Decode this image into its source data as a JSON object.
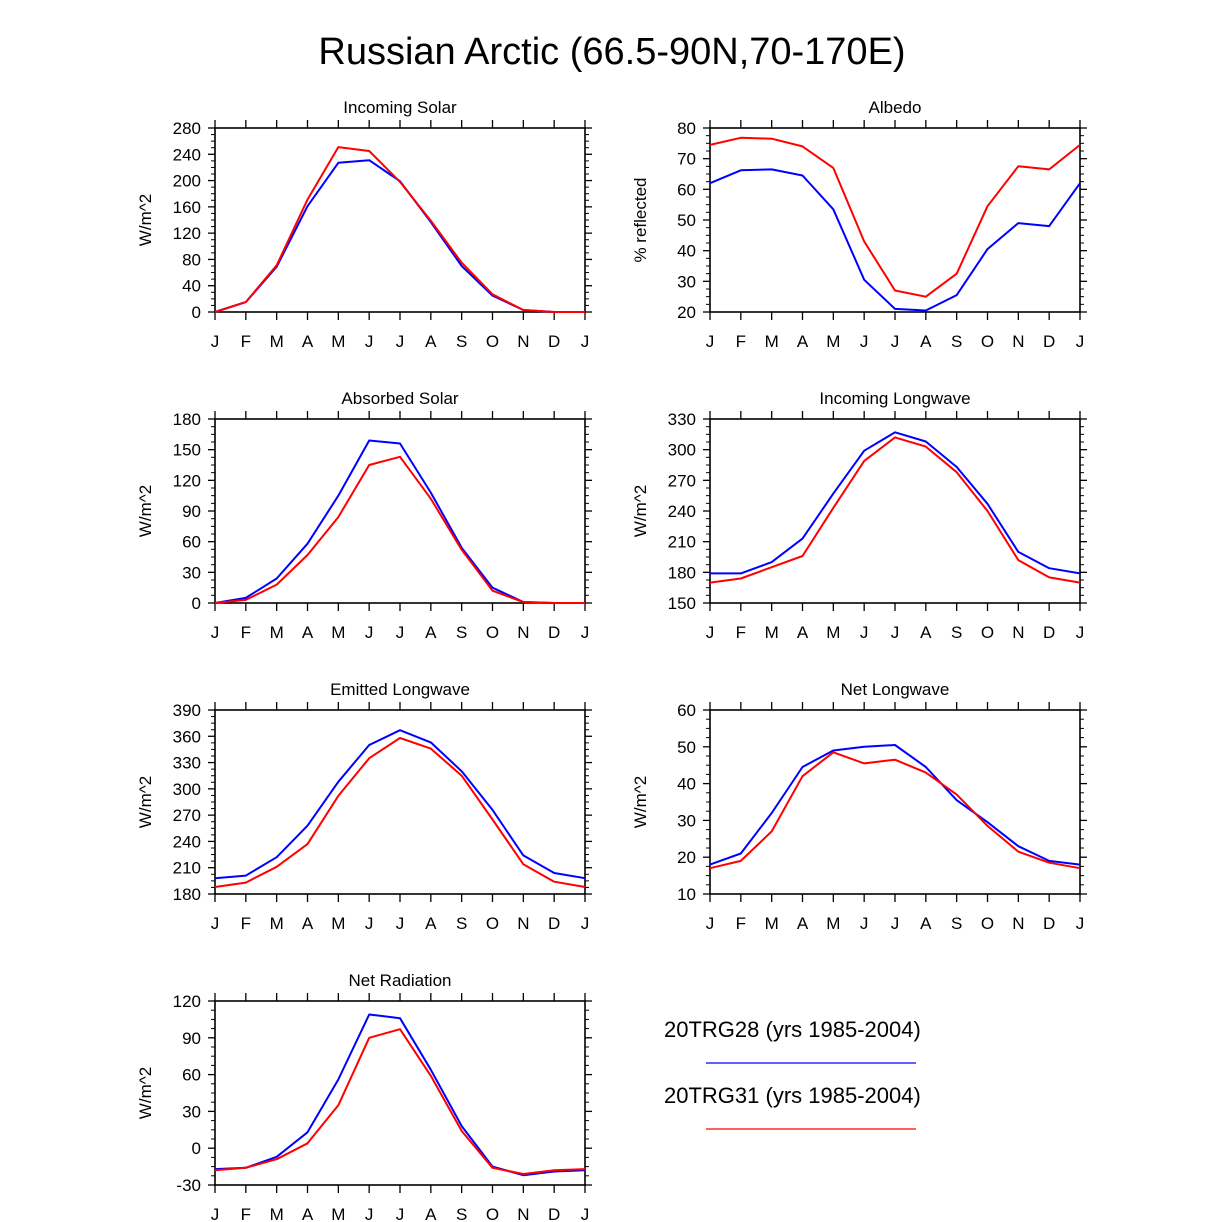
{
  "title": "Russian Arctic (66.5-90N,70-170E)",
  "colors": {
    "series1": "#0000ff",
    "series2": "#ff0000",
    "axis": "#000000"
  },
  "legend": {
    "items": [
      {
        "label": "20TRG28 (yrs 1985-2004)",
        "color": "#0000ff"
      },
      {
        "label": "20TRG31 (yrs 1985-2004)",
        "color": "#ff0000"
      }
    ]
  },
  "chart_data": [
    {
      "type": "line",
      "title": "Incoming Solar",
      "ylabel": "W/m^2",
      "xlabel": "",
      "categories": [
        "J",
        "F",
        "M",
        "A",
        "M",
        "J",
        "J",
        "A",
        "S",
        "O",
        "N",
        "D",
        "J"
      ],
      "ylim": [
        0,
        280
      ],
      "yticks": [
        0,
        40,
        80,
        120,
        160,
        200,
        240,
        280
      ],
      "series": [
        {
          "name": "20TRG28 (yrs 1985-2004)",
          "values": [
            0,
            15,
            69,
            161,
            227,
            231,
            199,
            137,
            70,
            25,
            3,
            0,
            0
          ]
        },
        {
          "name": "20TRG31 (yrs 1985-2004)",
          "values": [
            0,
            15,
            71,
            171,
            251,
            245,
            198,
            139,
            75,
            27,
            3,
            0,
            0
          ]
        }
      ]
    },
    {
      "type": "line",
      "title": "Albedo",
      "ylabel": "% reflected",
      "xlabel": "",
      "categories": [
        "J",
        "F",
        "M",
        "A",
        "M",
        "J",
        "J",
        "A",
        "S",
        "O",
        "N",
        "D",
        "J"
      ],
      "ylim": [
        20,
        80
      ],
      "yticks": [
        20,
        30,
        40,
        50,
        60,
        70,
        80
      ],
      "series": [
        {
          "name": "20TRG28 (yrs 1985-2004)",
          "values": [
            62,
            66.2,
            66.5,
            64.5,
            53.5,
            30.5,
            21,
            20.5,
            25.5,
            40.5,
            49,
            48,
            62
          ]
        },
        {
          "name": "20TRG31 (yrs 1985-2004)",
          "values": [
            74.5,
            76.8,
            76.5,
            74,
            67,
            43,
            27,
            25,
            32.5,
            54.5,
            67.5,
            66.5,
            74.5
          ]
        }
      ]
    },
    {
      "type": "line",
      "title": "Absorbed Solar",
      "ylabel": "W/m^2",
      "xlabel": "",
      "categories": [
        "J",
        "F",
        "M",
        "A",
        "M",
        "J",
        "J",
        "A",
        "S",
        "O",
        "N",
        "D",
        "J"
      ],
      "ylim": [
        0,
        180
      ],
      "yticks": [
        0,
        30,
        60,
        90,
        120,
        150,
        180
      ],
      "series": [
        {
          "name": "20TRG28 (yrs 1985-2004)",
          "values": [
            0,
            5,
            24,
            58,
            105,
            159,
            156,
            108,
            54,
            15,
            1,
            0,
            0
          ]
        },
        {
          "name": "20TRG31 (yrs 1985-2004)",
          "values": [
            0,
            3,
            18,
            47,
            84,
            135,
            143,
            102,
            52,
            12,
            1,
            0,
            0
          ]
        }
      ]
    },
    {
      "type": "line",
      "title": "Incoming Longwave",
      "ylabel": "W/m^2",
      "xlabel": "",
      "categories": [
        "J",
        "F",
        "M",
        "A",
        "M",
        "J",
        "J",
        "A",
        "S",
        "O",
        "N",
        "D",
        "J"
      ],
      "ylim": [
        150,
        330
      ],
      "yticks": [
        150,
        180,
        210,
        240,
        270,
        300,
        330
      ],
      "series": [
        {
          "name": "20TRG28 (yrs 1985-2004)",
          "values": [
            179,
            179,
            190,
            213,
            257,
            299,
            317,
            308,
            283,
            247,
            200,
            184,
            179
          ]
        },
        {
          "name": "20TRG31 (yrs 1985-2004)",
          "values": [
            170,
            174,
            185,
            196,
            243,
            289,
            312,
            303,
            278,
            240,
            192,
            175,
            170
          ]
        }
      ]
    },
    {
      "type": "line",
      "title": "Emitted Longwave",
      "ylabel": "W/m^2",
      "xlabel": "",
      "categories": [
        "J",
        "F",
        "M",
        "A",
        "M",
        "J",
        "J",
        "A",
        "S",
        "O",
        "N",
        "D",
        "J"
      ],
      "ylim": [
        180,
        390
      ],
      "yticks": [
        180,
        210,
        240,
        270,
        300,
        330,
        360,
        390
      ],
      "series": [
        {
          "name": "20TRG28 (yrs 1985-2004)",
          "values": [
            198,
            201,
            222,
            258,
            308,
            350,
            367,
            353,
            320,
            276,
            224,
            204,
            198
          ]
        },
        {
          "name": "20TRG31 (yrs 1985-2004)",
          "values": [
            188,
            193,
            211,
            237,
            292,
            335,
            358,
            346,
            315,
            265,
            214,
            194,
            188
          ]
        }
      ]
    },
    {
      "type": "line",
      "title": "Net Longwave",
      "ylabel": "W/m^2",
      "xlabel": "",
      "categories": [
        "J",
        "F",
        "M",
        "A",
        "M",
        "J",
        "J",
        "A",
        "S",
        "O",
        "N",
        "D",
        "J"
      ],
      "ylim": [
        10,
        60
      ],
      "yticks": [
        10,
        20,
        30,
        40,
        50,
        60
      ],
      "series": [
        {
          "name": "20TRG28 (yrs 1985-2004)",
          "values": [
            18,
            21,
            32,
            44.5,
            49,
            50,
            50.5,
            44.5,
            35.5,
            29.5,
            23,
            19,
            18
          ]
        },
        {
          "name": "20TRG31 (yrs 1985-2004)",
          "values": [
            17,
            19,
            27,
            42,
            48.5,
            45.5,
            46.5,
            43,
            37,
            28.5,
            21.5,
            18.5,
            17
          ]
        }
      ]
    },
    {
      "type": "line",
      "title": "Net Radiation",
      "ylabel": "W/m^2",
      "xlabel": "",
      "categories": [
        "J",
        "F",
        "M",
        "A",
        "M",
        "J",
        "J",
        "A",
        "S",
        "O",
        "N",
        "D",
        "J"
      ],
      "ylim": [
        -30,
        120
      ],
      "yticks": [
        -30,
        0,
        30,
        60,
        90,
        120
      ],
      "series": [
        {
          "name": "20TRG28 (yrs 1985-2004)",
          "values": [
            -17,
            -16,
            -7,
            13,
            56,
            109,
            106,
            64,
            18,
            -15,
            -22,
            -19,
            -18
          ]
        },
        {
          "name": "20TRG31 (yrs 1985-2004)",
          "values": [
            -18,
            -16,
            -9,
            4,
            35,
            90,
            97,
            59,
            14,
            -16,
            -21,
            -18,
            -17
          ]
        }
      ]
    }
  ]
}
